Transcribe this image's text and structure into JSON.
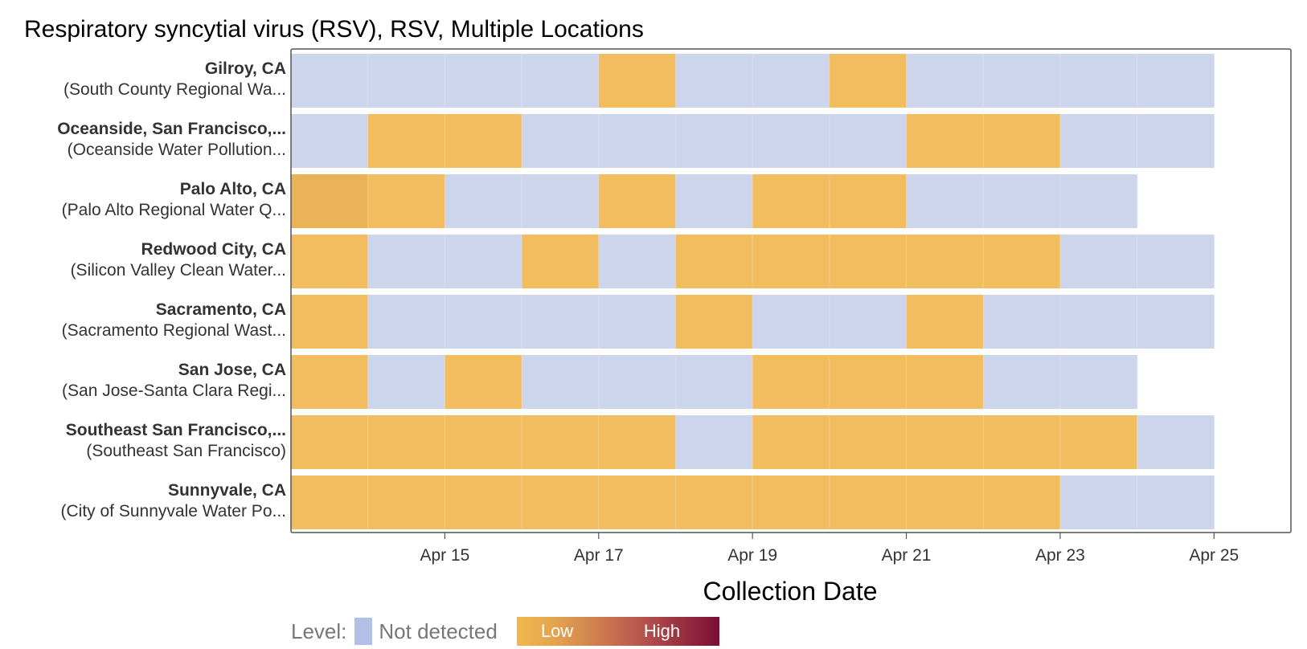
{
  "chart_data": {
    "type": "heatmap",
    "title": "Respiratory syncytial virus (RSV), RSV, Multiple Locations",
    "xlabel": "Collection Date",
    "x_ticks": [
      "Apr 15",
      "Apr 17",
      "Apr 19",
      "Apr 21",
      "Apr 23",
      "Apr 25"
    ],
    "x_tick_dates": [
      "2024-04-15",
      "2024-04-17",
      "2024-04-19",
      "2024-04-21",
      "2024-04-23",
      "2024-04-25"
    ],
    "xlim": [
      "2024-04-13",
      "2024-04-26"
    ],
    "grid": true,
    "colors": {
      "not_detected": "#cdd5ec",
      "low": "#f2bd5f",
      "low_dark": "#ebb358",
      "high": "#7a0e35",
      "frame": "#555555"
    },
    "rows": [
      {
        "city": "Gilroy, CA",
        "site": "(South County Regional Wa...",
        "cells": [
          {
            "date": "2024-04-13",
            "level": "Not detected"
          },
          {
            "date": "2024-04-14",
            "level": "Not detected"
          },
          {
            "date": "2024-04-15",
            "level": "Not detected"
          },
          {
            "date": "2024-04-16",
            "level": "Not detected"
          },
          {
            "date": "2024-04-17",
            "level": "Low"
          },
          {
            "date": "2024-04-18",
            "level": "Not detected"
          },
          {
            "date": "2024-04-19",
            "level": "Not detected"
          },
          {
            "date": "2024-04-20",
            "level": "Low"
          },
          {
            "date": "2024-04-21",
            "level": "Not detected"
          },
          {
            "date": "2024-04-22",
            "level": "Not detected"
          },
          {
            "date": "2024-04-23",
            "level": "Not detected"
          },
          {
            "date": "2024-04-24",
            "level": "Not detected"
          }
        ]
      },
      {
        "city": "Oceanside, San Francisco,...",
        "site": "(Oceanside Water Pollution...",
        "cells": [
          {
            "date": "2024-04-13",
            "level": "Not detected"
          },
          {
            "date": "2024-04-14",
            "level": "Low"
          },
          {
            "date": "2024-04-15",
            "level": "Low"
          },
          {
            "date": "2024-04-16",
            "level": "Not detected"
          },
          {
            "date": "2024-04-17",
            "level": "Not detected"
          },
          {
            "date": "2024-04-18",
            "level": "Not detected"
          },
          {
            "date": "2024-04-19",
            "level": "Not detected"
          },
          {
            "date": "2024-04-20",
            "level": "Not detected"
          },
          {
            "date": "2024-04-21",
            "level": "Low"
          },
          {
            "date": "2024-04-22",
            "level": "Low"
          },
          {
            "date": "2024-04-23",
            "level": "Not detected"
          },
          {
            "date": "2024-04-24",
            "level": "Not detected"
          }
        ]
      },
      {
        "city": "Palo Alto, CA",
        "site": "(Palo Alto Regional Water Q...",
        "cells": [
          {
            "date": "2024-04-13",
            "level": "Low",
            "shade": "dark"
          },
          {
            "date": "2024-04-14",
            "level": "Low"
          },
          {
            "date": "2024-04-15",
            "level": "Not detected"
          },
          {
            "date": "2024-04-16",
            "level": "Not detected"
          },
          {
            "date": "2024-04-17",
            "level": "Low"
          },
          {
            "date": "2024-04-18",
            "level": "Not detected"
          },
          {
            "date": "2024-04-19",
            "level": "Low"
          },
          {
            "date": "2024-04-20",
            "level": "Low"
          },
          {
            "date": "2024-04-21",
            "level": "Not detected"
          },
          {
            "date": "2024-04-22",
            "level": "Not detected"
          },
          {
            "date": "2024-04-23",
            "level": "Not detected"
          }
        ]
      },
      {
        "city": "Redwood City, CA",
        "site": "(Silicon Valley Clean Water...",
        "cells": [
          {
            "date": "2024-04-13",
            "level": "Low"
          },
          {
            "date": "2024-04-14",
            "level": "Not detected"
          },
          {
            "date": "2024-04-15",
            "level": "Not detected"
          },
          {
            "date": "2024-04-16",
            "level": "Low"
          },
          {
            "date": "2024-04-17",
            "level": "Not detected"
          },
          {
            "date": "2024-04-18",
            "level": "Low"
          },
          {
            "date": "2024-04-19",
            "level": "Low"
          },
          {
            "date": "2024-04-20",
            "level": "Low"
          },
          {
            "date": "2024-04-21",
            "level": "Low"
          },
          {
            "date": "2024-04-22",
            "level": "Low"
          },
          {
            "date": "2024-04-23",
            "level": "Not detected"
          },
          {
            "date": "2024-04-24",
            "level": "Not detected"
          }
        ]
      },
      {
        "city": "Sacramento, CA",
        "site": "(Sacramento Regional Wast...",
        "cells": [
          {
            "date": "2024-04-13",
            "level": "Low"
          },
          {
            "date": "2024-04-14",
            "level": "Not detected"
          },
          {
            "date": "2024-04-15",
            "level": "Not detected"
          },
          {
            "date": "2024-04-16",
            "level": "Not detected"
          },
          {
            "date": "2024-04-17",
            "level": "Not detected"
          },
          {
            "date": "2024-04-18",
            "level": "Low"
          },
          {
            "date": "2024-04-19",
            "level": "Not detected"
          },
          {
            "date": "2024-04-20",
            "level": "Not detected"
          },
          {
            "date": "2024-04-21",
            "level": "Low"
          },
          {
            "date": "2024-04-22",
            "level": "Not detected"
          },
          {
            "date": "2024-04-23",
            "level": "Not detected"
          },
          {
            "date": "2024-04-24",
            "level": "Not detected"
          }
        ]
      },
      {
        "city": "San Jose, CA",
        "site": "(San Jose-Santa Clara Regi...",
        "cells": [
          {
            "date": "2024-04-13",
            "level": "Low"
          },
          {
            "date": "2024-04-14",
            "level": "Not detected"
          },
          {
            "date": "2024-04-15",
            "level": "Low"
          },
          {
            "date": "2024-04-16",
            "level": "Not detected"
          },
          {
            "date": "2024-04-17",
            "level": "Not detected"
          },
          {
            "date": "2024-04-18",
            "level": "Not detected"
          },
          {
            "date": "2024-04-19",
            "level": "Low"
          },
          {
            "date": "2024-04-20",
            "level": "Low"
          },
          {
            "date": "2024-04-21",
            "level": "Low"
          },
          {
            "date": "2024-04-22",
            "level": "Not detected"
          },
          {
            "date": "2024-04-23",
            "level": "Not detected"
          }
        ]
      },
      {
        "city": "Southeast San Francisco,...",
        "site": "(Southeast San Francisco)",
        "cells": [
          {
            "date": "2024-04-13",
            "level": "Low"
          },
          {
            "date": "2024-04-14",
            "level": "Low"
          },
          {
            "date": "2024-04-15",
            "level": "Low"
          },
          {
            "date": "2024-04-16",
            "level": "Low"
          },
          {
            "date": "2024-04-17",
            "level": "Low"
          },
          {
            "date": "2024-04-18",
            "level": "Not detected"
          },
          {
            "date": "2024-04-19",
            "level": "Low"
          },
          {
            "date": "2024-04-20",
            "level": "Low"
          },
          {
            "date": "2024-04-21",
            "level": "Low"
          },
          {
            "date": "2024-04-22",
            "level": "Low"
          },
          {
            "date": "2024-04-23",
            "level": "Low"
          },
          {
            "date": "2024-04-24",
            "level": "Not detected"
          }
        ]
      },
      {
        "city": "Sunnyvale, CA",
        "site": "(City of Sunnyvale Water Po...",
        "cells": [
          {
            "date": "2024-04-13",
            "level": "Low"
          },
          {
            "date": "2024-04-14",
            "level": "Low"
          },
          {
            "date": "2024-04-15",
            "level": "Low"
          },
          {
            "date": "2024-04-16",
            "level": "Low"
          },
          {
            "date": "2024-04-17",
            "level": "Low"
          },
          {
            "date": "2024-04-18",
            "level": "Low"
          },
          {
            "date": "2024-04-19",
            "level": "Low"
          },
          {
            "date": "2024-04-20",
            "level": "Low"
          },
          {
            "date": "2024-04-21",
            "level": "Low"
          },
          {
            "date": "2024-04-22",
            "level": "Low"
          },
          {
            "date": "2024-04-23",
            "level": "Not detected"
          },
          {
            "date": "2024-04-24",
            "level": "Not detected"
          }
        ]
      }
    ],
    "legend": {
      "title": "Level:",
      "not_detected_label": "Not detected",
      "low_label": "Low",
      "high_label": "High",
      "placement": "bottom"
    }
  }
}
